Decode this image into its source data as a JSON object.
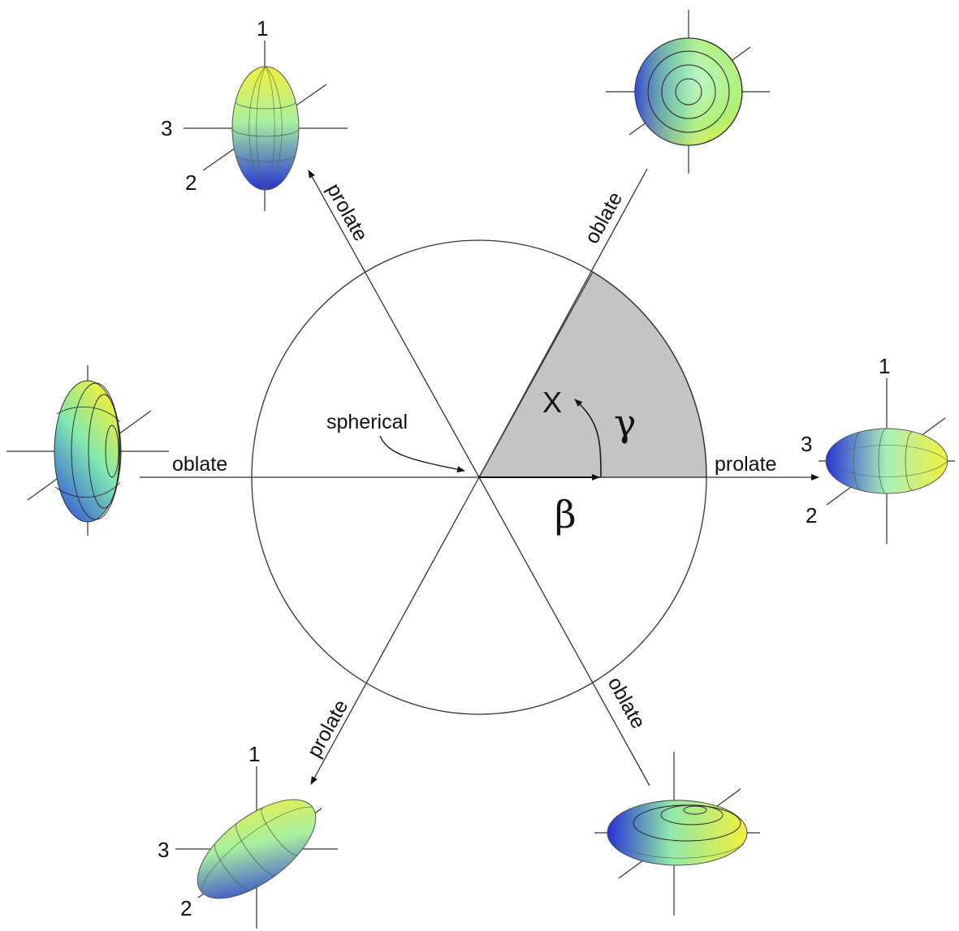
{
  "labels": {
    "spherical": "spherical",
    "x_point": "X",
    "gamma": "γ",
    "beta": "β"
  },
  "axes": [
    {
      "id": "right",
      "label": "prolate"
    },
    {
      "id": "upper-right",
      "label": "oblate"
    },
    {
      "id": "upper-left",
      "label": "prolate"
    },
    {
      "id": "left",
      "label": "oblate"
    },
    {
      "id": "lower-left",
      "label": "prolate"
    },
    {
      "id": "lower-right",
      "label": "oblate"
    }
  ],
  "ellipsoid_axis_numbers": {
    "one": "1",
    "two": "2",
    "three": "3"
  },
  "colors": {
    "sector_fill": "#c4c4c4",
    "line": "#333333",
    "shape_yellow": "#f2f23a",
    "shape_green": "#a8f0a0",
    "shape_blue": "#2a3cdc"
  }
}
